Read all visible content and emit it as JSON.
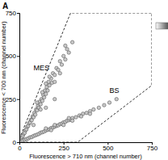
{
  "chart_data": {
    "type": "scatter",
    "title": "A",
    "x_label": "Fluorescence > 710 nm (channel number)",
    "y_label": "Fluorescence < 700 nm (channel number)",
    "xlim": [
      0,
      750
    ],
    "ylim": [
      0,
      750
    ],
    "xticks": [
      0,
      250,
      500,
      750
    ],
    "yticks": [
      0,
      250,
      500,
      750
    ],
    "marker": "circle",
    "color": "#c8c8c8",
    "series": [
      {
        "x": [
          5,
          10,
          15,
          20,
          25,
          30,
          35,
          40,
          45,
          50,
          55,
          60,
          65,
          70,
          75,
          80,
          85,
          90,
          95,
          100,
          105,
          110,
          115,
          120,
          125,
          130,
          135,
          140,
          145,
          150,
          155,
          160,
          165,
          170,
          180,
          185,
          190,
          200,
          210,
          220,
          230,
          240,
          250,
          260,
          270,
          280,
          300,
          200,
          170,
          130,
          100,
          230,
          260,
          150,
          120,
          80,
          150,
          200
        ],
        "values": [
          10,
          22,
          30,
          38,
          50,
          55,
          70,
          75,
          90,
          95,
          110,
          115,
          130,
          128,
          150,
          145,
          170,
          160,
          190,
          185,
          210,
          200,
          235,
          220,
          250,
          240,
          275,
          260,
          300,
          280,
          320,
          300,
          350,
          330,
          370,
          345,
          400,
          390,
          430,
          420,
          470,
          450,
          500,
          480,
          540,
          520,
          580,
          350,
          380,
          290,
          230,
          400,
          560,
          340,
          190,
          100,
          200,
          250
        ]
      },
      {
        "x": [
          10,
          20,
          30,
          40,
          50,
          60,
          70,
          80,
          90,
          100,
          110,
          120,
          130,
          140,
          150,
          160,
          170,
          180,
          190,
          200,
          210,
          220,
          230,
          240,
          250,
          260,
          270,
          280,
          290,
          300,
          320,
          340,
          360,
          380,
          400,
          420,
          450,
          480,
          510,
          550,
          150,
          200,
          250,
          300,
          180,
          350,
          280,
          400
        ],
        "values": [
          5,
          10,
          14,
          18,
          22,
          28,
          30,
          36,
          40,
          44,
          48,
          55,
          58,
          62,
          68,
          72,
          75,
          82,
          85,
          90,
          95,
          98,
          105,
          108,
          115,
          118,
          125,
          128,
          132,
          140,
          145,
          155,
          165,
          170,
          180,
          190,
          200,
          215,
          230,
          250,
          80,
          100,
          100,
          125,
          70,
          150,
          140,
          165
        ]
      }
    ],
    "gate": {
      "x": [
        0,
        290,
        750,
        750,
        330,
        0
      ],
      "y": [
        20,
        750,
        750,
        330,
        0,
        0
      ]
    },
    "annotations": [
      {
        "text": "MES",
        "x": 80,
        "y": 415
      },
      {
        "text": "BS",
        "x": 510,
        "y": 285
      }
    ]
  }
}
